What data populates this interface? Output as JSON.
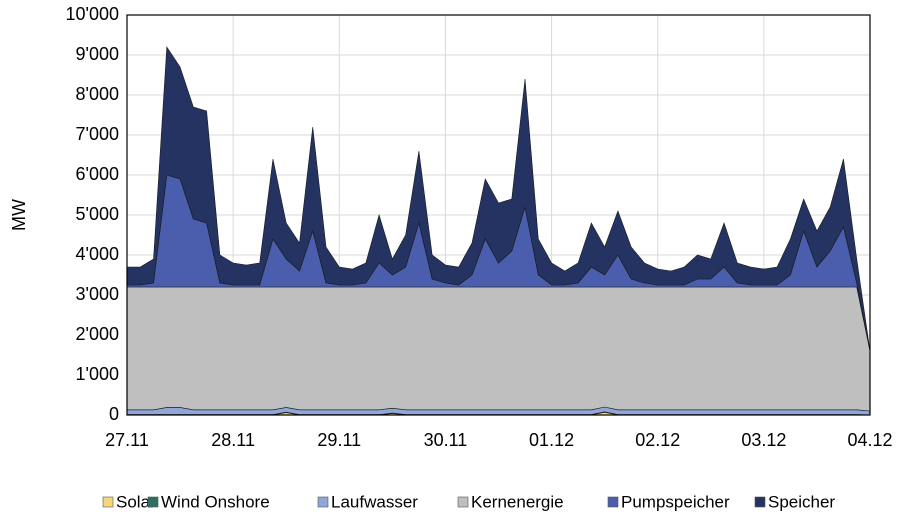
{
  "chart_data": {
    "type": "stacked_area",
    "y_label": "MW",
    "x": [
      0,
      0.125,
      0.25,
      0.375,
      0.5,
      0.625,
      0.75,
      0.875,
      1,
      1.125,
      1.25,
      1.375,
      1.5,
      1.625,
      1.75,
      1.875,
      2,
      2.125,
      2.25,
      2.375,
      2.5,
      2.625,
      2.75,
      2.875,
      3,
      3.125,
      3.25,
      3.375,
      3.5,
      3.625,
      3.75,
      3.875,
      4,
      4.125,
      4.25,
      4.375,
      4.5,
      4.625,
      4.75,
      4.875,
      5,
      5.125,
      5.25,
      5.375,
      5.5,
      5.625,
      5.75,
      5.875,
      6,
      6.125,
      6.25,
      6.375,
      6.5,
      6.625,
      6.75,
      6.875,
      7
    ],
    "xlim": [
      0,
      7
    ],
    "xticks": [
      {
        "value": 0,
        "label": "27.11"
      },
      {
        "value": 1,
        "label": "28.11"
      },
      {
        "value": 2,
        "label": "29.11"
      },
      {
        "value": 3,
        "label": "30.11"
      },
      {
        "value": 4,
        "label": "01.12"
      },
      {
        "value": 5,
        "label": "02.12"
      },
      {
        "value": 6,
        "label": "03.12"
      },
      {
        "value": 7,
        "label": "04.12"
      }
    ],
    "ylim": [
      0,
      10000
    ],
    "yticks": [
      0,
      {
        "value": 1000,
        "label": "1'000"
      },
      {
        "value": 2000,
        "label": "2'000"
      },
      {
        "value": 3000,
        "label": "3'000"
      },
      {
        "value": 4000,
        "label": "4'000"
      },
      {
        "value": 5000,
        "label": "5'000"
      },
      {
        "value": 6000,
        "label": "6'000"
      },
      {
        "value": 7000,
        "label": "7'000"
      },
      {
        "value": 8000,
        "label": "8'000"
      },
      {
        "value": 9000,
        "label": "9'000"
      },
      {
        "value": 10000,
        "label": "10'000"
      }
    ],
    "grid": true,
    "legend": "bottom",
    "series": [
      {
        "name": "Solar",
        "color": "#f5d67a",
        "values": [
          0,
          0,
          0,
          0,
          0,
          0,
          0,
          0,
          0,
          0,
          0,
          0,
          60,
          0,
          0,
          0,
          0,
          0,
          0,
          0,
          40,
          0,
          0,
          0,
          0,
          0,
          0,
          0,
          0,
          0,
          0,
          0,
          0,
          0,
          0,
          0,
          70,
          0,
          0,
          0,
          0,
          0,
          0,
          0,
          0,
          0,
          0,
          0,
          0,
          0,
          0,
          0,
          0,
          0,
          0,
          0,
          0
        ]
      },
      {
        "name": "Wind Onshore",
        "color": "#2f6f62",
        "values": [
          10,
          10,
          10,
          10,
          10,
          10,
          10,
          10,
          10,
          10,
          10,
          10,
          10,
          10,
          10,
          10,
          10,
          10,
          10,
          10,
          10,
          10,
          10,
          10,
          10,
          10,
          10,
          10,
          10,
          10,
          10,
          10,
          10,
          10,
          10,
          10,
          10,
          10,
          10,
          10,
          10,
          10,
          10,
          10,
          10,
          10,
          10,
          10,
          10,
          10,
          10,
          10,
          10,
          10,
          10,
          10,
          0
        ]
      },
      {
        "name": "Laufwasser",
        "color": "#8fa6d6",
        "values": [
          120,
          120,
          120,
          180,
          180,
          120,
          120,
          120,
          120,
          120,
          120,
          120,
          120,
          120,
          120,
          120,
          120,
          120,
          120,
          120,
          120,
          120,
          120,
          120,
          120,
          120,
          120,
          120,
          120,
          120,
          120,
          120,
          120,
          120,
          120,
          120,
          120,
          120,
          120,
          120,
          120,
          120,
          120,
          120,
          120,
          120,
          120,
          120,
          120,
          120,
          120,
          120,
          120,
          120,
          120,
          120,
          100
        ]
      },
      {
        "name": "Kernenergie",
        "color": "#bfbfbf",
        "values": [
          3070,
          3070,
          3070,
          3010,
          3010,
          3070,
          3070,
          3070,
          3070,
          3070,
          3070,
          3070,
          3010,
          3070,
          3070,
          3070,
          3070,
          3070,
          3070,
          3070,
          3030,
          3070,
          3070,
          3070,
          3070,
          3070,
          3070,
          3070,
          3070,
          3070,
          3070,
          3070,
          3070,
          3070,
          3070,
          3070,
          3000,
          3070,
          3070,
          3070,
          3070,
          3070,
          3070,
          3070,
          3070,
          3070,
          3070,
          3070,
          3070,
          3070,
          3070,
          3070,
          3070,
          3070,
          3070,
          3070,
          1500
        ]
      },
      {
        "name": "Pumpspeicher",
        "color": "#4a5ead",
        "values": [
          50,
          50,
          100,
          2800,
          2700,
          1700,
          1600,
          100,
          50,
          50,
          50,
          1200,
          700,
          400,
          1400,
          100,
          50,
          50,
          100,
          600,
          300,
          500,
          1600,
          200,
          100,
          50,
          300,
          1200,
          600,
          900,
          2000,
          300,
          50,
          50,
          100,
          500,
          300,
          800,
          200,
          100,
          50,
          50,
          50,
          200,
          200,
          500,
          100,
          50,
          50,
          50,
          300,
          1400,
          500,
          900,
          1500,
          100,
          0
        ]
      },
      {
        "name": "Speicher",
        "color": "#243361",
        "values": [
          450,
          450,
          600,
          3200,
          2800,
          2800,
          2800,
          700,
          550,
          500,
          550,
          2000,
          900,
          700,
          2600,
          900,
          450,
          400,
          500,
          1200,
          400,
          800,
          1800,
          600,
          450,
          450,
          800,
          1500,
          1500,
          1300,
          3200,
          900,
          550,
          350,
          500,
          1100,
          700,
          1100,
          800,
          500,
          400,
          350,
          450,
          600,
          500,
          1100,
          500,
          450,
          400,
          450,
          900,
          800,
          900,
          1100,
          1700,
          600,
          0
        ]
      }
    ]
  }
}
